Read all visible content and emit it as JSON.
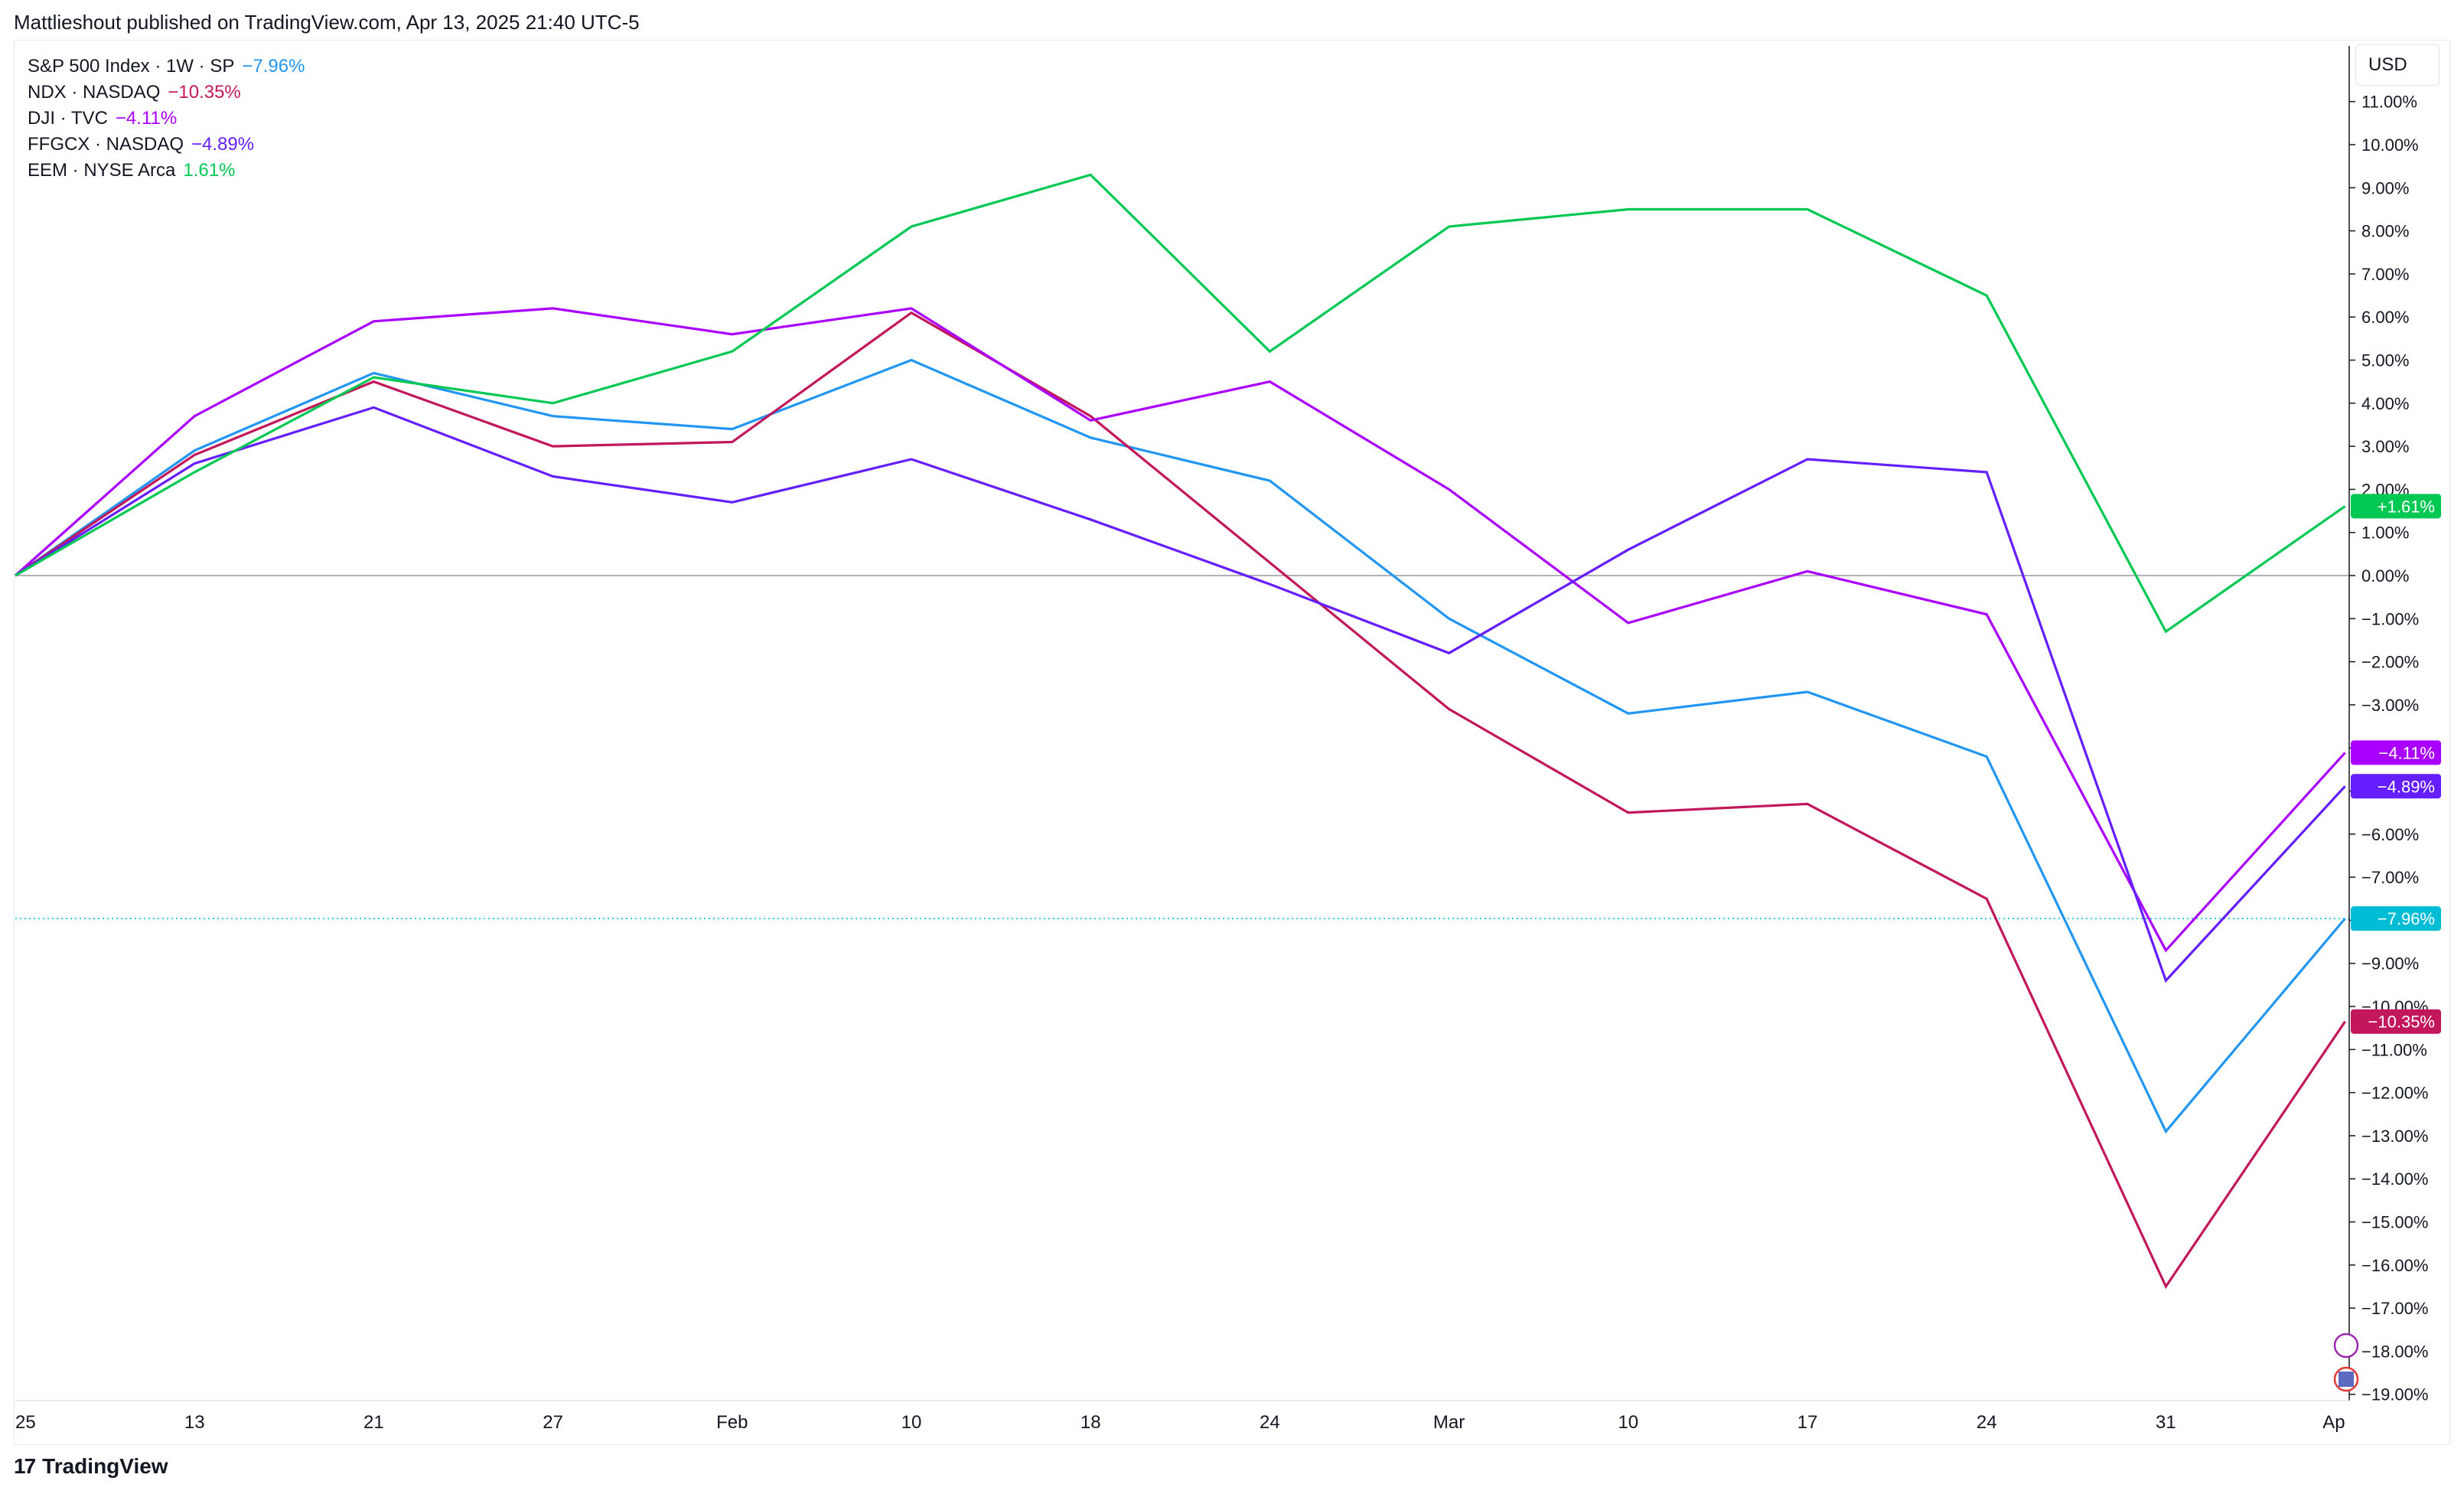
{
  "header": {
    "text": "Mattlieshout published on TradingView.com, Apr 13, 2025 21:40 UTC-5"
  },
  "footer": {
    "logo_mark": "17",
    "logo_text": "TradingView"
  },
  "currency": "USD",
  "colors": {
    "sp500": "#2196f3",
    "ndx": "#c2185b",
    "dji": "#aa00ff",
    "ffgcx": "#651fff",
    "eem": "#00c853",
    "sp500_badge": "#00bcd4"
  },
  "chart_data": {
    "type": "line",
    "x": [
      "25",
      "13",
      "21",
      "27",
      "Feb",
      "10",
      "18",
      "24",
      "Mar",
      "10",
      "17",
      "24",
      "31",
      "Ap"
    ],
    "ylim": [
      -19.4,
      12.2
    ],
    "yticks": [
      11,
      10,
      9,
      8,
      7,
      6,
      5,
      4,
      3,
      2,
      1,
      0,
      -1,
      -2,
      -3,
      -4,
      -5,
      -6,
      -7,
      -8,
      -9,
      -10,
      -11,
      -12,
      -13,
      -14,
      -15,
      -16,
      -17,
      -18,
      -19
    ],
    "ytick_labels": [
      "11.00%",
      "10.00%",
      "9.00%",
      "8.00%",
      "7.00%",
      "6.00%",
      "5.00%",
      "4.00%",
      "3.00%",
      "2.00%",
      "1.00%",
      "0.00%",
      "−1.00%",
      "−2.00%",
      "−3.00%",
      "−4.00%",
      "−5.00%",
      "−6.00%",
      "−7.00%",
      "−8.00%",
      "−9.00%",
      "−10.00%",
      "−11.00%",
      "−12.00%",
      "−13.00%",
      "−14.00%",
      "−15.00%",
      "−16.00%",
      "−17.00%",
      "−18.00%",
      "−19.00%"
    ],
    "series": [
      {
        "name": "S&P 500 Index · 1W · SP",
        "legend_value": "−7.96%",
        "badge": "−7.96%",
        "color_key": "sp500",
        "values": [
          0,
          2.9,
          4.7,
          3.7,
          3.4,
          5.0,
          3.2,
          2.2,
          -1.0,
          -3.2,
          -2.7,
          -4.2,
          -12.9,
          -7.96
        ]
      },
      {
        "name": "NDX · NASDAQ",
        "legend_value": "−10.35%",
        "badge": "−10.35%",
        "color_key": "ndx",
        "values": [
          0,
          2.8,
          4.5,
          3.0,
          3.1,
          6.1,
          3.7,
          0.3,
          -3.1,
          -5.5,
          -5.3,
          -7.5,
          -16.5,
          -10.35
        ]
      },
      {
        "name": "DJI · TVC",
        "legend_value": "−4.11%",
        "badge": "−4.11%",
        "color_key": "dji",
        "values": [
          0,
          3.7,
          5.9,
          6.2,
          5.6,
          6.2,
          3.6,
          4.5,
          2.0,
          -1.1,
          0.1,
          -0.9,
          -8.7,
          -4.11
        ]
      },
      {
        "name": "FFGCX · NASDAQ",
        "legend_value": "−4.89%",
        "badge": "−4.89%",
        "color_key": "ffgcx",
        "values": [
          0,
          2.6,
          3.9,
          2.3,
          1.7,
          2.7,
          1.3,
          -0.2,
          -1.8,
          0.6,
          2.7,
          2.4,
          -9.4,
          -4.89
        ]
      },
      {
        "name": "EEM · NYSE Arca",
        "legend_value": "1.61%",
        "badge": "+1.61%",
        "color_key": "eem",
        "values": [
          0,
          2.4,
          4.6,
          4.0,
          5.2,
          8.1,
          9.3,
          5.2,
          8.1,
          8.5,
          8.5,
          6.5,
          -1.3,
          1.61
        ]
      }
    ]
  }
}
